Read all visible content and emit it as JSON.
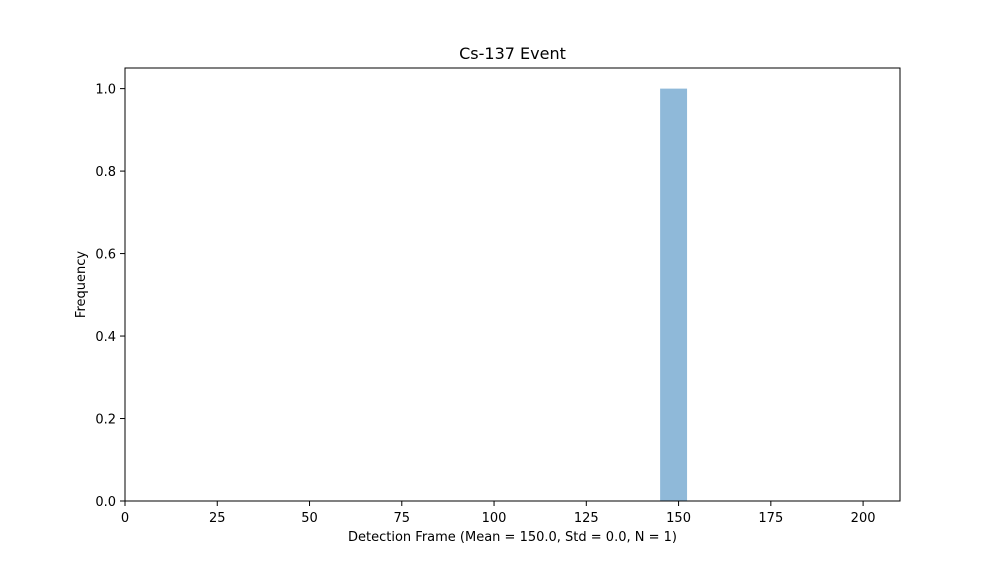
{
  "chart_data": {
    "type": "bar",
    "title": "Cs-137 Event",
    "xlabel": "Detection Frame (Mean = 150.0, Std = 0.0, N = 1)",
    "ylabel": "Frequency",
    "xlim": [
      0,
      210
    ],
    "ylim": [
      0,
      1.05
    ],
    "x_ticks": [
      0,
      25,
      50,
      75,
      100,
      125,
      150,
      175,
      200
    ],
    "y_ticks": [
      0.0,
      0.2,
      0.4,
      0.6,
      0.8,
      1.0
    ],
    "x_tick_labels": [
      "0",
      "25",
      "50",
      "75",
      "100",
      "125",
      "150",
      "175",
      "200"
    ],
    "y_tick_labels": [
      "0.0",
      "0.2",
      "0.4",
      "0.6",
      "0.8",
      "1.0"
    ],
    "bins": [
      {
        "x0": 145,
        "x1": 152.3,
        "value": 1
      }
    ],
    "bar_color": "#8fb9d9",
    "grid": false,
    "legend": "none"
  }
}
